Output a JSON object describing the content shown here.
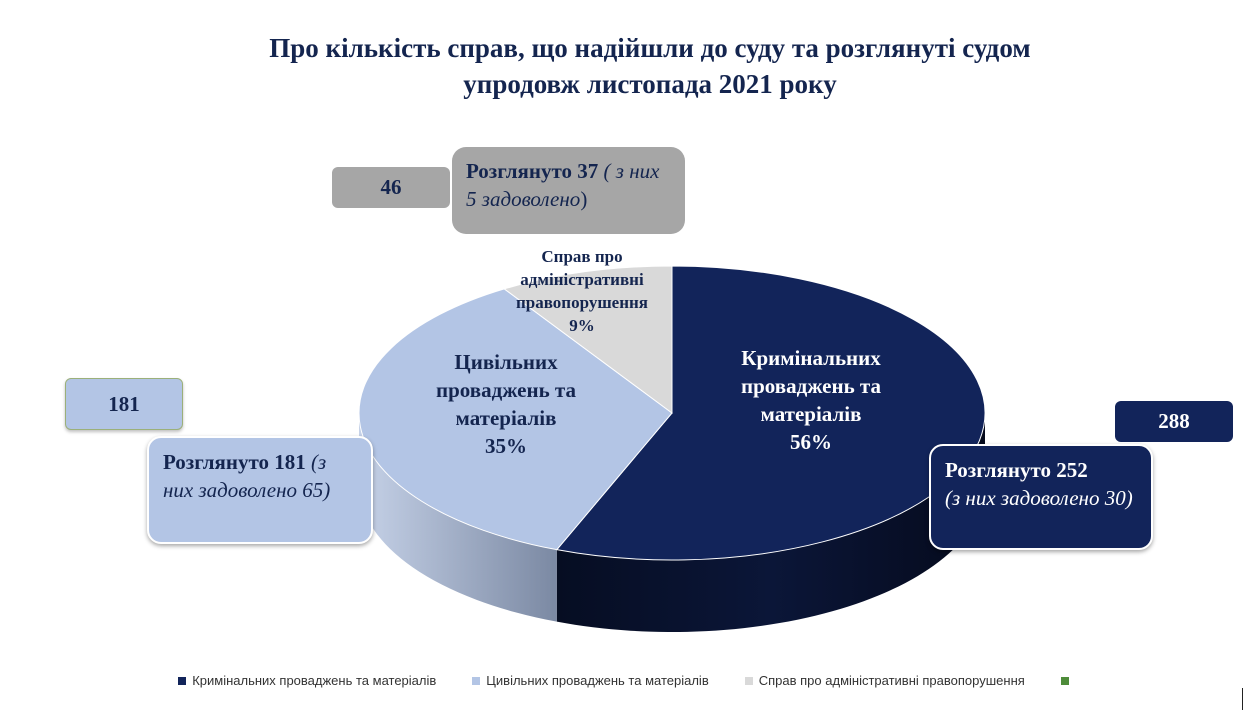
{
  "title": {
    "line1": "Про кількість справ, що надійшли до суду та розглянуті судом",
    "line2": "упродовж листопада  2021 року"
  },
  "chart_data": {
    "type": "pie",
    "three_d": true,
    "categories": [
      "Кримінальних проваджень та матеріалів",
      "Цивільних проваджень та матеріалів",
      "Справ про адміністративні правопорушення"
    ],
    "values": [
      56,
      35,
      9
    ],
    "counts": [
      288,
      181,
      46
    ],
    "colors": [
      "#12245a",
      "#b3c5e5",
      "#d9d9d9"
    ],
    "slice_labels": [
      [
        "Кримінальних",
        "проваджень та",
        "матеріалів",
        "56%"
      ],
      [
        "Цивільних",
        "проваджень та",
        "матеріалів",
        "35%"
      ],
      [
        "Справ про",
        "адміністративні",
        "правопорушення",
        "9%"
      ]
    ],
    "legend_placement": "bottom"
  },
  "callouts": {
    "criminal": {
      "count": "288",
      "reviewed": "Розглянуто 252",
      "note": "(з них задоволено 30)"
    },
    "civil": {
      "count": "181",
      "reviewed": "Розглянуто 181",
      "note_open": " (з",
      "note": "них задоволено 65)"
    },
    "admin": {
      "count": "46",
      "reviewed": "Розглянуто 37",
      "note_open": " ( з",
      "note": "них 5 задоволено",
      "note_close": ")"
    }
  },
  "legend": {
    "items": [
      {
        "label": "Кримінальних проваджень та матеріалів",
        "color": "#12245a"
      },
      {
        "label": "Цивільних проваджень та матеріалів",
        "color": "#b3c5e5"
      },
      {
        "label": "Справ про адміністративні правопорушення",
        "color": "#d9d9d9"
      },
      {
        "label": "",
        "color": "#4e8c3a"
      }
    ]
  }
}
